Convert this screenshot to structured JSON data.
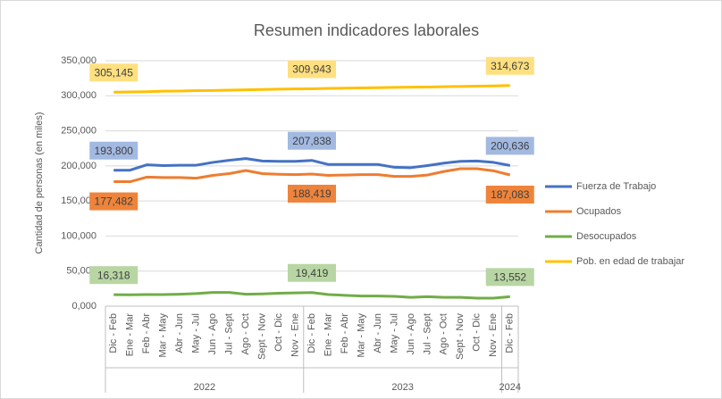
{
  "chart_data": {
    "type": "line",
    "title": "Resumen indicadores laborales",
    "y_label": "Cantidad de personas (en miles)",
    "groups": [
      {
        "label": "2022",
        "categories": [
          "Dic - Feb",
          "Ene - Mar",
          "Feb - Abr",
          "Mar - May",
          "Abr - Jun",
          "May - Jul",
          "Jun - Ago",
          "Jul - Sept",
          "Ago - Oct",
          "Sept - Nov",
          "Oct - Dic",
          "Nov - Ene"
        ]
      },
      {
        "label": "2023",
        "categories": [
          "Dic - Feb",
          "Ene - Mar",
          "Feb - Abr",
          "Mar - May",
          "Abr - Jun",
          "May - Jul",
          "Jun - Ago",
          "Jul - Sept",
          "Ago - Oct",
          "Sept - Nov",
          "Oct - Dic",
          "Nov - Ene"
        ]
      },
      {
        "label": "2024",
        "categories": [
          "Dic - Feb"
        ]
      }
    ],
    "ylim": [
      0,
      350000
    ],
    "yticks": [
      {
        "value": 0,
        "label": "0,000"
      },
      {
        "value": 50000,
        "label": "50,000"
      },
      {
        "value": 100000,
        "label": "100,000"
      },
      {
        "value": 150000,
        "label": "150,000"
      },
      {
        "value": 200000,
        "label": "200,000"
      },
      {
        "value": 250000,
        "label": "250,000"
      },
      {
        "value": 300000,
        "label": "300,000"
      },
      {
        "value": 350000,
        "label": "350,000"
      }
    ],
    "grid": true,
    "legend": "right",
    "series": [
      {
        "name": "Fuerza de Trabajo",
        "color": "#4472c4",
        "values": [
          193800,
          194000,
          201500,
          200500,
          201000,
          201000,
          205000,
          208000,
          210500,
          207000,
          206500,
          206500,
          207838,
          202000,
          202000,
          202000,
          202000,
          198000,
          197500,
          200500,
          204000,
          206500,
          207000,
          205000,
          200636
        ],
        "value_labels": [
          "193,800",
          null,
          null,
          null,
          null,
          null,
          null,
          null,
          null,
          null,
          null,
          null,
          "207,838",
          null,
          null,
          null,
          null,
          null,
          null,
          null,
          null,
          null,
          null,
          null,
          "200,636"
        ]
      },
      {
        "name": "Ocupados",
        "color": "#ed7d31",
        "values": [
          177482,
          177500,
          184000,
          183500,
          183500,
          182500,
          186500,
          189000,
          193500,
          189000,
          188000,
          187500,
          188419,
          186500,
          187000,
          187500,
          187500,
          185000,
          185000,
          187000,
          192000,
          196000,
          196000,
          193000,
          187083
        ],
        "value_labels": [
          "177,482",
          null,
          null,
          null,
          null,
          null,
          null,
          null,
          null,
          null,
          null,
          null,
          "188,419",
          null,
          null,
          null,
          null,
          null,
          null,
          null,
          null,
          null,
          null,
          null,
          "187,083"
        ]
      },
      {
        "name": "Desocupados",
        "color": "#70ad47",
        "values": [
          16318,
          16300,
          16500,
          16500,
          17000,
          18000,
          19500,
          19500,
          17000,
          17500,
          18500,
          19000,
          19419,
          16500,
          15500,
          14500,
          14500,
          14000,
          12500,
          13500,
          12500,
          12500,
          11500,
          11500,
          13552
        ],
        "value_labels": [
          "16,318",
          null,
          null,
          null,
          null,
          null,
          null,
          null,
          null,
          null,
          null,
          null,
          "19,419",
          null,
          null,
          null,
          null,
          null,
          null,
          null,
          null,
          null,
          null,
          null,
          "13,552"
        ]
      },
      {
        "name": "Pob. en edad de trabajar",
        "color": "#ffc000",
        "values": [
          305145,
          305500,
          305800,
          306500,
          306800,
          307300,
          307500,
          308000,
          308500,
          309000,
          309500,
          309700,
          309943,
          310500,
          310800,
          311200,
          311500,
          312000,
          312300,
          312500,
          313000,
          313300,
          313700,
          314000,
          314673
        ],
        "value_labels": [
          "305,145",
          null,
          null,
          null,
          null,
          null,
          null,
          null,
          null,
          null,
          null,
          null,
          "309,943",
          null,
          null,
          null,
          null,
          null,
          null,
          null,
          null,
          null,
          null,
          null,
          "314,673"
        ]
      }
    ]
  }
}
